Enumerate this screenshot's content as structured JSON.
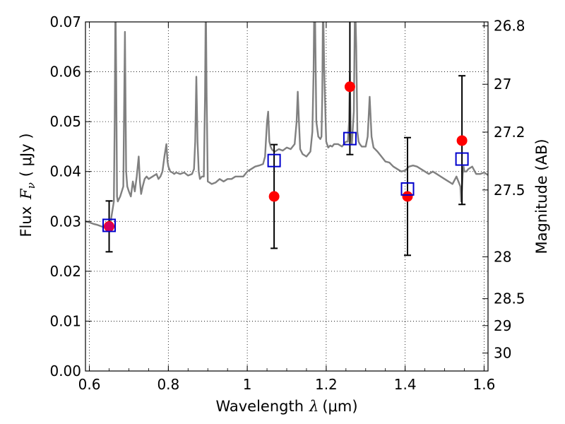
{
  "chart_data": {
    "type": "scatter",
    "xlabel": "Wavelength",
    "xlabel_symbol": "λ",
    "xlabel_unit": "(μm)",
    "ylabel": "Flux",
    "ylabel_symbol": "F",
    "ylabel_subscript": "ν",
    "ylabel_unit": "( μJy )",
    "y2label": "Magnitude (AB)",
    "xlim": [
      0.59,
      1.61
    ],
    "ylim": [
      0.0,
      0.07
    ],
    "grid": true,
    "x_ticks": [
      0.6,
      0.8,
      1.0,
      1.2,
      1.4,
      1.6
    ],
    "x_tick_labels": [
      "0.6",
      "0.8",
      "1",
      "1.2",
      "1.4",
      "1.6"
    ],
    "y_ticks": [
      0.0,
      0.01,
      0.02,
      0.03,
      0.04,
      0.05,
      0.06,
      0.07
    ],
    "y_tick_labels": [
      "0.00",
      "0.01",
      "0.02",
      "0.03",
      "0.04",
      "0.05",
      "0.06",
      "0.07"
    ],
    "y2_ticks": [
      {
        "label": "26.8",
        "flux": 0.0692
      },
      {
        "label": "27",
        "flux": 0.0575
      },
      {
        "label": "27.2",
        "flux": 0.0479
      },
      {
        "label": "27.5",
        "flux": 0.0363
      },
      {
        "label": "28",
        "flux": 0.0229
      },
      {
        "label": "28.5",
        "flux": 0.0145
      },
      {
        "label": "29",
        "flux": 0.0091
      },
      {
        "label": "30",
        "flux": 0.0036
      }
    ],
    "series": [
      {
        "role": "model spectrum",
        "kind": "line",
        "color": "#808080",
        "x": [
          0.59,
          0.6,
          0.61,
          0.62,
          0.63,
          0.64,
          0.645,
          0.65,
          0.655,
          0.66,
          0.662,
          0.664,
          0.666,
          0.668,
          0.67,
          0.672,
          0.675,
          0.678,
          0.682,
          0.686,
          0.69,
          0.693,
          0.696,
          0.7,
          0.705,
          0.71,
          0.715,
          0.72,
          0.725,
          0.728,
          0.731,
          0.735,
          0.74,
          0.745,
          0.75,
          0.76,
          0.77,
          0.775,
          0.78,
          0.785,
          0.79,
          0.795,
          0.798,
          0.8,
          0.805,
          0.81,
          0.815,
          0.82,
          0.83,
          0.84,
          0.85,
          0.86,
          0.865,
          0.868,
          0.871,
          0.874,
          0.877,
          0.88,
          0.885,
          0.89,
          0.893,
          0.895,
          0.897,
          0.9,
          0.91,
          0.92,
          0.93,
          0.94,
          0.95,
          0.96,
          0.97,
          0.98,
          0.99,
          1.0,
          1.01,
          1.02,
          1.03,
          1.04,
          1.045,
          1.05,
          1.053,
          1.056,
          1.059,
          1.062,
          1.065,
          1.07,
          1.08,
          1.09,
          1.1,
          1.11,
          1.12,
          1.125,
          1.128,
          1.131,
          1.134,
          1.14,
          1.15,
          1.16,
          1.165,
          1.168,
          1.17,
          1.172,
          1.175,
          1.18,
          1.185,
          1.188,
          1.19,
          1.192,
          1.195,
          1.2,
          1.205,
          1.21,
          1.215,
          1.22,
          1.23,
          1.24,
          1.25,
          1.255,
          1.258,
          1.26,
          1.262,
          1.265,
          1.27,
          1.273,
          1.276,
          1.279,
          1.282,
          1.285,
          1.29,
          1.3,
          1.305,
          1.31,
          1.315,
          1.32,
          1.33,
          1.34,
          1.35,
          1.36,
          1.37,
          1.38,
          1.39,
          1.4,
          1.41,
          1.42,
          1.43,
          1.44,
          1.45,
          1.46,
          1.47,
          1.48,
          1.49,
          1.5,
          1.51,
          1.52,
          1.53,
          1.535,
          1.54,
          1.542,
          1.544,
          1.546,
          1.548,
          1.55,
          1.555,
          1.56,
          1.57,
          1.58,
          1.59,
          1.6,
          1.61
        ],
        "y": [
          0.03,
          0.0298,
          0.0295,
          0.0293,
          0.029,
          0.0288,
          0.0285,
          0.0282,
          0.0305,
          0.033,
          0.034,
          0.05,
          0.075,
          0.058,
          0.035,
          0.034,
          0.0345,
          0.035,
          0.036,
          0.037,
          0.068,
          0.04,
          0.037,
          0.036,
          0.035,
          0.038,
          0.036,
          0.039,
          0.043,
          0.038,
          0.0355,
          0.037,
          0.0385,
          0.039,
          0.0385,
          0.039,
          0.0395,
          0.0385,
          0.039,
          0.04,
          0.043,
          0.0455,
          0.042,
          0.041,
          0.04,
          0.0398,
          0.0395,
          0.0398,
          0.0395,
          0.0398,
          0.0392,
          0.0395,
          0.0405,
          0.046,
          0.059,
          0.046,
          0.04,
          0.0385,
          0.039,
          0.039,
          0.055,
          0.075,
          0.055,
          0.038,
          0.0375,
          0.0378,
          0.0385,
          0.038,
          0.0385,
          0.0385,
          0.039,
          0.039,
          0.039,
          0.04,
          0.0405,
          0.041,
          0.0412,
          0.0415,
          0.043,
          0.05,
          0.052,
          0.046,
          0.045,
          0.0445,
          0.0442,
          0.044,
          0.0445,
          0.0442,
          0.0448,
          0.0445,
          0.0455,
          0.05,
          0.056,
          0.05,
          0.0445,
          0.0435,
          0.043,
          0.044,
          0.048,
          0.06,
          0.075,
          0.07,
          0.05,
          0.047,
          0.0465,
          0.047,
          0.055,
          0.075,
          0.06,
          0.046,
          0.0448,
          0.0452,
          0.045,
          0.0455,
          0.0455,
          0.045,
          0.046,
          0.046,
          0.05,
          0.06,
          0.048,
          0.0455,
          0.052,
          0.075,
          0.065,
          0.048,
          0.046,
          0.0455,
          0.045,
          0.045,
          0.047,
          0.055,
          0.047,
          0.0448,
          0.044,
          0.043,
          0.042,
          0.0418,
          0.041,
          0.0405,
          0.04,
          0.0402,
          0.041,
          0.0412,
          0.041,
          0.0405,
          0.04,
          0.0395,
          0.04,
          0.0395,
          0.039,
          0.0385,
          0.038,
          0.0375,
          0.039,
          0.038,
          0.037,
          0.034,
          0.0365,
          0.0395,
          0.041,
          0.04,
          0.04,
          0.0405,
          0.041,
          0.0395,
          0.0395,
          0.0398,
          0.0393
        ]
      },
      {
        "role": "observed photometry",
        "kind": "errorbar",
        "marker": "circle",
        "color": "#ff0000",
        "x": [
          0.65,
          1.068,
          1.26,
          1.406,
          1.544
        ],
        "y": [
          0.029,
          0.035,
          0.057,
          0.035,
          0.0462
        ],
        "yerr_low": [
          0.0051,
          0.0104,
          0.0136,
          0.0118,
          0.0128
        ],
        "yerr_high": [
          0.0051,
          0.0104,
          0.0136,
          0.0118,
          0.013
        ]
      },
      {
        "role": "model photometry",
        "kind": "scatter",
        "marker": "open-square",
        "color": "#0000cc",
        "x": [
          0.65,
          1.068,
          1.26,
          1.406,
          1.544
        ],
        "y": [
          0.0292,
          0.0422,
          0.0466,
          0.0365,
          0.0425
        ]
      }
    ]
  }
}
